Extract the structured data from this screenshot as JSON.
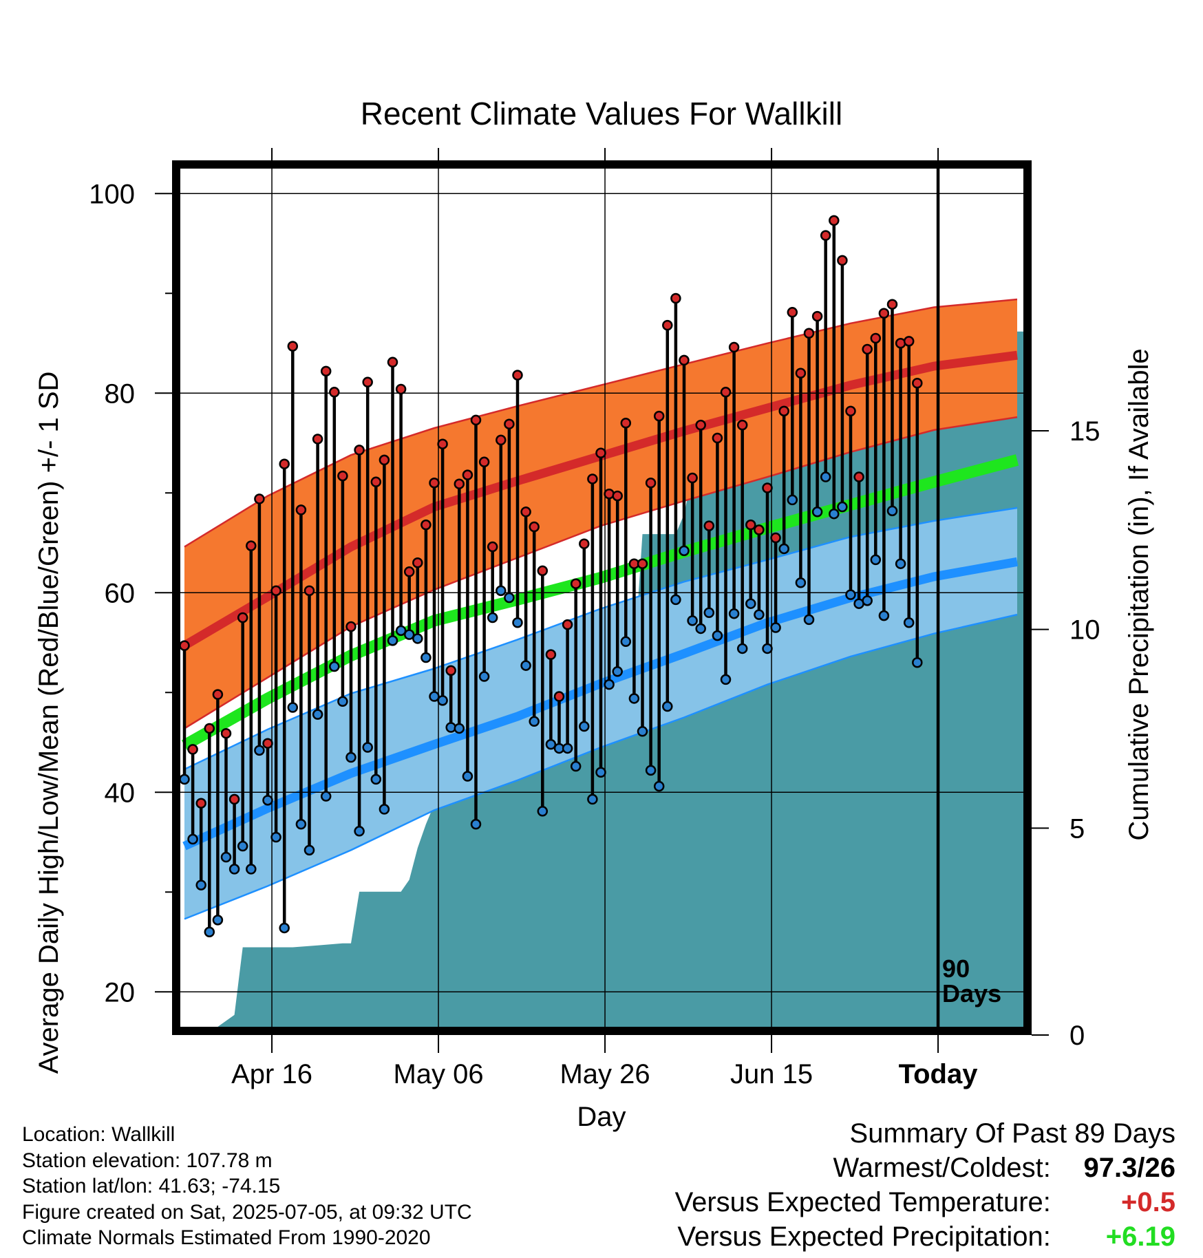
{
  "chart_data": {
    "type": "line",
    "title": "Recent Climate Values For Wallkill",
    "xlabel": "Day",
    "ylabel": "Average Daily High/Low/Mean (Red/Blue/Green) +/- 1 SD",
    "ylabel2": "Cumulative Precipitation (in), If Available",
    "ylim": [
      16.5,
      102.5
    ],
    "ylim2": [
      0,
      21.6
    ],
    "xlim": [
      0,
      102
    ],
    "x_ticks": [
      {
        "x": 10.5,
        "label": "Apr 16"
      },
      {
        "x": 30.5,
        "label": "May 06"
      },
      {
        "x": 50.5,
        "label": "May 26"
      },
      {
        "x": 70.5,
        "label": "Jun 15"
      },
      {
        "x": 90.5,
        "label": "Today"
      }
    ],
    "y_ticks": [
      20,
      40,
      60,
      80,
      100
    ],
    "y2_ticks": [
      0,
      5,
      10,
      15
    ],
    "grid": true,
    "today_line_x": 90.5,
    "today_label": [
      "90",
      "Days"
    ],
    "colors": {
      "high_band": "#f5782f",
      "high_mean": "#d42a2a",
      "low_band": "#86c3e8",
      "low_mean": "#1e90ff",
      "mean_line": "#1ee61e",
      "precip": "#4a9ba5",
      "high_dot": "#d42a2a",
      "low_dot": "#2a80d0"
    },
    "normals": {
      "x": [
        0,
        10,
        20,
        30,
        40,
        50,
        60,
        70,
        80,
        90,
        100
      ],
      "high": [
        54.7,
        59.6,
        64.6,
        68.6,
        71.2,
        73.7,
        76.2,
        78.5,
        80.8,
        82.7,
        83.8
      ],
      "high_upper": [
        64.6,
        69.7,
        73.8,
        76.5,
        78.7,
        80.8,
        82.9,
        85.0,
        87.0,
        88.6,
        89.4
      ],
      "high_lower": [
        46.4,
        51.5,
        56.6,
        60.3,
        63.5,
        66.7,
        69.2,
        71.6,
        74.1,
        76.3,
        77.6
      ],
      "mean": [
        44.7,
        49.4,
        53.7,
        57.2,
        59.3,
        61.5,
        64.1,
        66.5,
        68.8,
        71.1,
        73.3
      ],
      "low": [
        34.6,
        38.4,
        41.9,
        44.8,
        47.6,
        50.9,
        53.9,
        57.0,
        59.5,
        61.6,
        63.1
      ],
      "low_upper": [
        42.3,
        46.3,
        49.9,
        52.4,
        55.3,
        58.4,
        61.1,
        63.3,
        65.6,
        67.2,
        68.5
      ],
      "low_lower": [
        27.3,
        30.6,
        34.2,
        38.2,
        41.2,
        44.5,
        47.5,
        50.8,
        53.6,
        55.9,
        57.8
      ]
    },
    "series": [
      {
        "name": "High",
        "values": [
          54.7,
          44.3,
          38.9,
          46.4,
          49.8,
          45.9,
          39.3,
          57.5,
          64.7,
          69.4,
          44.9,
          60.2,
          72.9,
          84.7,
          68.3,
          60.2,
          75.4,
          82.2,
          80.1,
          71.7,
          56.6,
          74.3,
          81.1,
          71.1,
          73.3,
          83.1,
          80.4,
          62.1,
          63.0,
          66.8,
          71.0,
          74.9,
          52.2,
          70.9,
          71.8,
          77.3,
          73.1,
          64.6,
          75.3,
          76.9,
          81.8,
          68.1,
          66.6,
          62.2,
          53.8,
          49.6,
          56.8,
          60.9,
          64.9,
          71.4,
          74.0,
          69.9,
          69.7,
          77.0,
          62.9,
          62.9,
          71.0,
          77.7,
          86.8,
          89.5,
          83.3,
          71.5,
          76.8,
          66.7,
          75.5,
          80.1,
          84.6,
          76.8,
          66.8,
          66.3,
          70.5,
          65.5,
          78.2,
          88.1,
          82.0,
          86.0,
          87.7,
          95.8,
          97.3,
          93.3,
          78.2,
          71.6,
          84.4,
          85.5,
          88.0,
          88.9,
          85.0,
          85.2,
          81.0
        ]
      },
      {
        "name": "Low",
        "values": [
          41.3,
          35.3,
          30.7,
          26.0,
          27.2,
          33.5,
          32.3,
          34.6,
          32.3,
          44.2,
          39.2,
          35.5,
          26.4,
          48.5,
          36.8,
          34.2,
          47.8,
          39.6,
          52.6,
          49.1,
          43.5,
          36.1,
          44.5,
          41.3,
          38.3,
          55.2,
          56.2,
          55.8,
          55.4,
          53.5,
          49.6,
          49.2,
          46.5,
          46.4,
          41.6,
          36.8,
          51.6,
          57.5,
          60.2,
          59.5,
          57.0,
          52.7,
          47.1,
          38.1,
          44.8,
          44.4,
          44.4,
          42.6,
          46.6,
          39.3,
          42.0,
          50.8,
          52.1,
          55.1,
          49.4,
          46.1,
          42.2,
          40.6,
          48.6,
          59.3,
          64.2,
          57.2,
          56.4,
          58.0,
          55.7,
          51.3,
          57.9,
          54.4,
          58.9,
          57.8,
          54.4,
          56.5,
          64.4,
          69.3,
          61.0,
          57.3,
          68.1,
          71.6,
          67.9,
          68.6,
          59.8,
          58.9,
          59.2,
          63.3,
          57.7,
          68.2,
          62.9,
          57.0,
          53.0
        ]
      }
    ],
    "precip_cumulative": {
      "x": [
        0,
        4,
        6,
        7,
        10,
        13,
        16,
        19,
        20,
        21,
        26,
        27,
        28,
        29,
        30,
        31,
        32,
        33,
        34,
        37,
        38,
        39,
        43,
        44,
        45,
        46,
        50,
        54,
        55,
        59,
        60,
        61,
        62,
        63,
        64,
        65,
        66,
        67,
        68,
        69,
        70,
        71,
        72,
        73,
        74,
        75,
        76,
        80,
        81,
        84,
        85,
        88,
        90,
        102
      ],
      "values": [
        0,
        0,
        0.3,
        2.0,
        2.0,
        2.0,
        2.05,
        2.1,
        2.1,
        3.4,
        3.4,
        3.7,
        4.5,
        5.1,
        5.6,
        5.65,
        5.7,
        7.9,
        7.95,
        8.0,
        8.3,
        8.5,
        8.5,
        8.7,
        9.0,
        9.1,
        9.1,
        9.2,
        12.4,
        12.4,
        12.9,
        13.9,
        13.95,
        14.8,
        14.8,
        14.8,
        14.8,
        14.8,
        14.85,
        14.9,
        15.0,
        15.6,
        16.2,
        16.2,
        16.25,
        16.3,
        16.35,
        16.35,
        16.5,
        16.8,
        16.8,
        17.2,
        17.5,
        17.5
      ]
    }
  },
  "info": {
    "location": "Location: Wallkill",
    "elevation": "Station elevation: 107.78 m",
    "latlon": "Station lat/lon: 41.63; -74.15",
    "created": "Figure created on Sat, 2025-07-05, at 09:32 UTC",
    "normals": "Climate Normals Estimated From 1990-2020"
  },
  "summary": {
    "title": "Summary Of Past 89 Days",
    "warmcold_label": "Warmest/Coldest:",
    "warmcold_value": "97.3/26",
    "temp_label": "Versus Expected Temperature:",
    "temp_value": "+0.5",
    "temp_color": "#d42a2a",
    "precip_label": "Versus Expected Precipitation:",
    "precip_value": "+6.19",
    "precip_color": "#22dd22"
  }
}
